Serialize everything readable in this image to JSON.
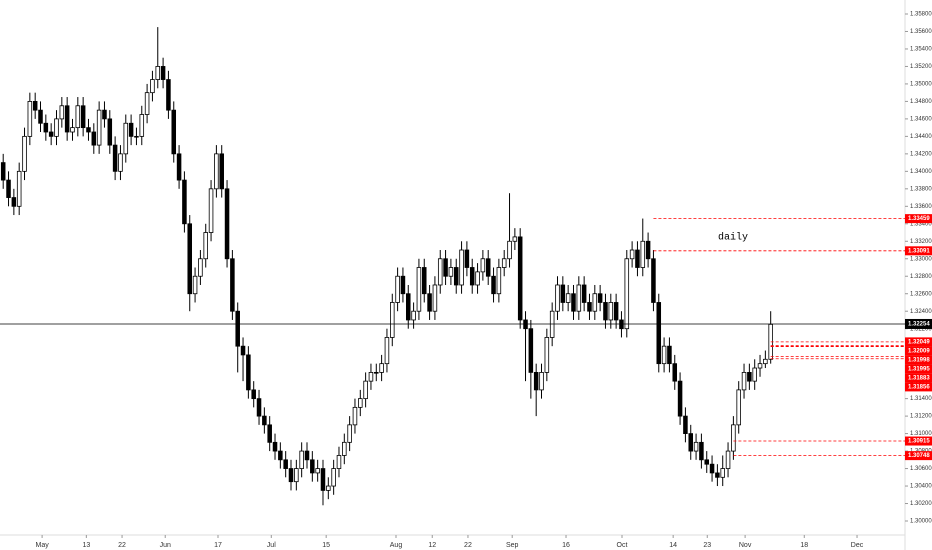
{
  "chart_data": {
    "type": "candlestick",
    "open": [
      1.341,
      1.339,
      1.337,
      1.336,
      1.34,
      1.344,
      1.348,
      1.347,
      1.3455,
      1.3445,
      1.344,
      1.346,
      1.3475,
      1.3445,
      1.345,
      1.3475,
      1.345,
      1.3445,
      1.343,
      1.347,
      1.346,
      1.343,
      1.34,
      1.342,
      1.3455,
      1.344,
      1.344,
      1.3465,
      1.349,
      1.3505,
      1.352,
      1.3505,
      1.347,
      1.342,
      1.339,
      1.334,
      1.326,
      1.328,
      1.33,
      1.333,
      1.338,
      1.342,
      1.338,
      1.33,
      1.324,
      1.32,
      1.319,
      1.315,
      1.314,
      1.312,
      1.311,
      1.309,
      1.308,
      1.307,
      1.306,
      1.3045,
      1.306,
      1.308,
      1.307,
      1.3055,
      1.306,
      1.3035,
      1.304,
      1.306,
      1.3075,
      1.309,
      1.311,
      1.313,
      1.314,
      1.316,
      1.317,
      1.317,
      1.318,
      1.321,
      1.325,
      1.328,
      1.326,
      1.323,
      1.324,
      1.329,
      1.326,
      1.324,
      1.327,
      1.33,
      1.328,
      1.329,
      1.327,
      1.331,
      1.329,
      1.327,
      1.3285,
      1.33,
      1.328,
      1.326,
      1.329,
      1.33,
      1.332,
      1.3325,
      1.323,
      1.322,
      1.317,
      1.315,
      1.317,
      1.321,
      1.324,
      1.327,
      1.325,
      1.326,
      1.324,
      1.327,
      1.325,
      1.324,
      1.326,
      1.325,
      1.323,
      1.325,
      1.323,
      1.322,
      1.33,
      1.331,
      1.329,
      1.332,
      1.33,
      1.325,
      1.318,
      1.32,
      1.318,
      1.316,
      1.312,
      1.31,
      1.308,
      1.309,
      1.307,
      1.3065,
      1.3055,
      1.305,
      1.306,
      1.308,
      1.311,
      1.315,
      1.317,
      1.316,
      1.3175,
      1.318,
      1.3185
    ],
    "high": [
      1.342,
      1.34,
      1.338,
      1.341,
      1.345,
      1.349,
      1.349,
      1.348,
      1.3465,
      1.3455,
      1.347,
      1.3485,
      1.3485,
      1.346,
      1.3485,
      1.3485,
      1.346,
      1.3455,
      1.348,
      1.348,
      1.347,
      1.344,
      1.343,
      1.3465,
      1.3465,
      1.345,
      1.3475,
      1.35,
      1.3515,
      1.3565,
      1.353,
      1.3515,
      1.348,
      1.343,
      1.34,
      1.335,
      1.329,
      1.331,
      1.334,
      1.339,
      1.343,
      1.343,
      1.339,
      1.331,
      1.325,
      1.321,
      1.32,
      1.316,
      1.315,
      1.313,
      1.312,
      1.31,
      1.309,
      1.308,
      1.307,
      1.307,
      1.309,
      1.309,
      1.308,
      1.307,
      1.307,
      1.305,
      1.307,
      1.3085,
      1.31,
      1.312,
      1.314,
      1.315,
      1.317,
      1.318,
      1.318,
      1.319,
      1.322,
      1.326,
      1.329,
      1.329,
      1.327,
      1.325,
      1.33,
      1.33,
      1.327,
      1.328,
      1.331,
      1.331,
      1.33,
      1.33,
      1.332,
      1.332,
      1.33,
      1.3295,
      1.331,
      1.331,
      1.329,
      1.33,
      1.331,
      1.3375,
      1.3335,
      1.3335,
      1.324,
      1.323,
      1.318,
      1.318,
      1.322,
      1.325,
      1.328,
      1.328,
      1.327,
      1.327,
      1.328,
      1.328,
      1.326,
      1.327,
      1.327,
      1.326,
      1.326,
      1.326,
      1.324,
      1.331,
      1.332,
      1.332,
      1.3346,
      1.333,
      1.331,
      1.326,
      1.321,
      1.321,
      1.319,
      1.317,
      1.313,
      1.311,
      1.31,
      1.31,
      1.308,
      1.3075,
      1.3065,
      1.3075,
      1.309,
      1.312,
      1.316,
      1.318,
      1.318,
      1.3185,
      1.319,
      1.3195,
      1.324
    ],
    "low": [
      1.338,
      1.336,
      1.335,
      1.335,
      1.339,
      1.343,
      1.346,
      1.3445,
      1.3435,
      1.343,
      1.343,
      1.345,
      1.3435,
      1.3435,
      1.344,
      1.344,
      1.3435,
      1.342,
      1.342,
      1.345,
      1.342,
      1.339,
      1.339,
      1.341,
      1.343,
      1.343,
      1.343,
      1.3455,
      1.348,
      1.3495,
      1.3495,
      1.346,
      1.341,
      1.338,
      1.333,
      1.324,
      1.325,
      1.327,
      1.329,
      1.332,
      1.337,
      1.337,
      1.329,
      1.323,
      1.317,
      1.316,
      1.314,
      1.313,
      1.311,
      1.31,
      1.308,
      1.307,
      1.306,
      1.305,
      1.3035,
      1.3035,
      1.305,
      1.306,
      1.3045,
      1.3045,
      1.3018,
      1.3025,
      1.303,
      1.305,
      1.3065,
      1.308,
      1.31,
      1.312,
      1.313,
      1.315,
      1.316,
      1.316,
      1.317,
      1.32,
      1.324,
      1.325,
      1.322,
      1.322,
      1.323,
      1.325,
      1.323,
      1.323,
      1.326,
      1.327,
      1.327,
      1.326,
      1.326,
      1.328,
      1.326,
      1.326,
      1.3275,
      1.327,
      1.325,
      1.325,
      1.328,
      1.329,
      1.331,
      1.322,
      1.316,
      1.314,
      1.312,
      1.314,
      1.316,
      1.32,
      1.323,
      1.324,
      1.324,
      1.323,
      1.323,
      1.324,
      1.323,
      1.323,
      1.324,
      1.322,
      1.322,
      1.322,
      1.321,
      1.321,
      1.329,
      1.328,
      1.328,
      1.329,
      1.324,
      1.317,
      1.317,
      1.317,
      1.315,
      1.311,
      1.309,
      1.307,
      1.307,
      1.306,
      1.3055,
      1.3045,
      1.304,
      1.304,
      1.305,
      1.307,
      1.31,
      1.314,
      1.315,
      1.315,
      1.3165,
      1.3175,
      1.318
    ],
    "close": [
      1.339,
      1.337,
      1.336,
      1.34,
      1.344,
      1.348,
      1.347,
      1.3455,
      1.3445,
      1.344,
      1.346,
      1.3475,
      1.3445,
      1.345,
      1.3475,
      1.345,
      1.3445,
      1.343,
      1.347,
      1.346,
      1.343,
      1.34,
      1.342,
      1.3455,
      1.344,
      1.344,
      1.3465,
      1.349,
      1.3505,
      1.352,
      1.3505,
      1.347,
      1.342,
      1.339,
      1.334,
      1.326,
      1.328,
      1.33,
      1.333,
      1.338,
      1.342,
      1.338,
      1.33,
      1.324,
      1.32,
      1.319,
      1.315,
      1.314,
      1.312,
      1.311,
      1.309,
      1.308,
      1.307,
      1.306,
      1.3045,
      1.306,
      1.308,
      1.307,
      1.3055,
      1.306,
      1.3035,
      1.304,
      1.306,
      1.3075,
      1.309,
      1.311,
      1.313,
      1.314,
      1.316,
      1.317,
      1.317,
      1.318,
      1.321,
      1.325,
      1.328,
      1.326,
      1.323,
      1.324,
      1.329,
      1.326,
      1.324,
      1.327,
      1.33,
      1.328,
      1.329,
      1.327,
      1.331,
      1.329,
      1.327,
      1.3285,
      1.33,
      1.328,
      1.326,
      1.329,
      1.33,
      1.332,
      1.3325,
      1.323,
      1.322,
      1.317,
      1.315,
      1.317,
      1.321,
      1.324,
      1.327,
      1.325,
      1.326,
      1.324,
      1.327,
      1.325,
      1.324,
      1.326,
      1.325,
      1.323,
      1.325,
      1.323,
      1.322,
      1.33,
      1.331,
      1.329,
      1.332,
      1.33,
      1.325,
      1.318,
      1.32,
      1.318,
      1.316,
      1.312,
      1.31,
      1.308,
      1.309,
      1.307,
      1.3065,
      1.3055,
      1.305,
      1.306,
      1.308,
      1.311,
      1.315,
      1.317,
      1.316,
      1.3175,
      1.318,
      1.3185,
      1.3225
    ],
    "up_color": "#ffffff",
    "down_color": "#000000",
    "xlim": [
      -0.6,
      169.2
    ],
    "xticks": [
      {
        "value": 7.3,
        "label": "May"
      },
      {
        "value": 15.6,
        "label": "13"
      },
      {
        "value": 22.3,
        "label": "22"
      },
      {
        "value": 30.4,
        "label": "Jun"
      },
      {
        "value": 40.3,
        "label": "17"
      },
      {
        "value": 50.3,
        "label": "Jul"
      },
      {
        "value": 60.6,
        "label": "15"
      },
      {
        "value": 73.7,
        "label": "Aug"
      },
      {
        "value": 80.5,
        "label": "12"
      },
      {
        "value": 87.2,
        "label": "22"
      },
      {
        "value": 95.5,
        "label": "Sep"
      },
      {
        "value": 105.6,
        "label": "16"
      },
      {
        "value": 116.1,
        "label": "Oct"
      },
      {
        "value": 125.7,
        "label": "14"
      },
      {
        "value": 132.1,
        "label": "23"
      },
      {
        "value": 139.2,
        "label": "Nov"
      },
      {
        "value": 150.3,
        "label": "18"
      },
      {
        "value": 160.2,
        "label": "Dec"
      }
    ],
    "ylim": [
      1.2984,
      1.3596
    ],
    "yticks": [
      {
        "value": 1.358,
        "label": "1.35800"
      },
      {
        "value": 1.356,
        "label": "1.35600"
      },
      {
        "value": 1.354,
        "label": "1.35400"
      },
      {
        "value": 1.352,
        "label": "1.35200"
      },
      {
        "value": 1.35,
        "label": "1.35000"
      },
      {
        "value": 1.348,
        "label": "1.34800"
      },
      {
        "value": 1.346,
        "label": "1.34600"
      },
      {
        "value": 1.344,
        "label": "1.34400"
      },
      {
        "value": 1.342,
        "label": "1.34200"
      },
      {
        "value": 1.34,
        "label": "1.34000"
      },
      {
        "value": 1.338,
        "label": "1.33800"
      },
      {
        "value": 1.336,
        "label": "1.33600"
      },
      {
        "value": 1.334,
        "label": "1.33400"
      },
      {
        "value": 1.332,
        "label": "1.33200"
      },
      {
        "value": 1.33,
        "label": "1.33000"
      },
      {
        "value": 1.328,
        "label": "1.32800"
      },
      {
        "value": 1.326,
        "label": "1.32600"
      },
      {
        "value": 1.324,
        "label": "1.32400"
      },
      {
        "value": 1.322,
        "label": "1.32200"
      },
      {
        "value": 1.32,
        "label": "1.32000"
      },
      {
        "value": 1.318,
        "label": "1.31800"
      },
      {
        "value": 1.316,
        "label": "1.31600"
      },
      {
        "value": 1.314,
        "label": "1.31400"
      },
      {
        "value": 1.312,
        "label": "1.31200"
      },
      {
        "value": 1.31,
        "label": "1.31000"
      },
      {
        "value": 1.308,
        "label": "1.30800"
      },
      {
        "value": 1.306,
        "label": "1.30600"
      },
      {
        "value": 1.304,
        "label": "1.30400"
      },
      {
        "value": 1.302,
        "label": "1.30200"
      },
      {
        "value": 1.3,
        "label": "1.30000"
      }
    ],
    "current_price": 1.32254,
    "levels": [
      {
        "price": 1.33459,
        "start": 122
      },
      {
        "price": 1.33091,
        "start": 122
      },
      {
        "price": 1.32049,
        "start": 144
      },
      {
        "price": 1.32009,
        "start": 144
      },
      {
        "price": 1.31998,
        "start": 144
      },
      {
        "price": 1.31995,
        "start": 144
      },
      {
        "price": 1.31883,
        "start": 144
      },
      {
        "price": 1.31856,
        "start": 144
      },
      {
        "price": 1.30915,
        "start": 137
      },
      {
        "price": 1.30748,
        "start": 137
      }
    ],
    "level_color": "#ff0000",
    "annotation": "daily"
  }
}
